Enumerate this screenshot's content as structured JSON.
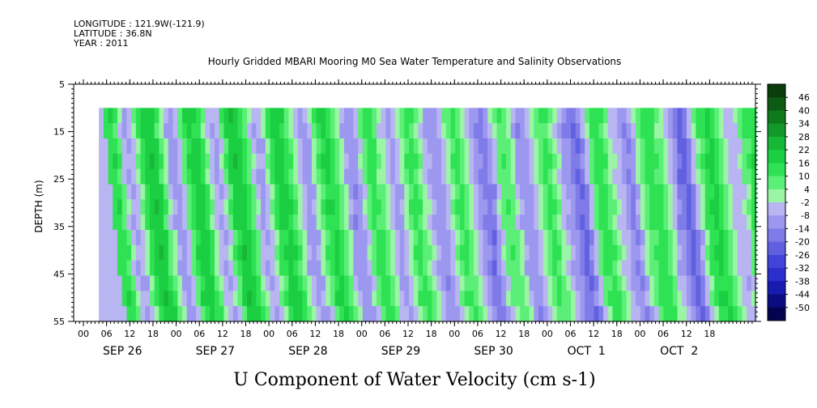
{
  "header": {
    "longitude": "LONGITUDE : 121.9W(-121.9)",
    "latitude": "LATITUDE : 36.8N",
    "year": "YEAR : 2011"
  },
  "chart_data": {
    "type": "heatmap",
    "title": "Hourly Gridded MBARI Mooring M0 Sea Water Temperature and Salinity Observations",
    "xlabel": "U Component of Water Velocity (cm s-1)",
    "ylabel": "DEPTH (m)",
    "ylim": [
      5,
      55
    ],
    "y_inverted": true,
    "y_ticks": [
      5,
      15,
      25,
      35,
      45,
      55
    ],
    "x_hour_ticks": [
      "00",
      "06",
      "12",
      "18",
      "00",
      "06",
      "12",
      "18",
      "00",
      "06",
      "12",
      "18",
      "00",
      "06",
      "12",
      "18",
      "00",
      "06",
      "12",
      "18",
      "00",
      "06",
      "12",
      "18",
      "00",
      "06",
      "12",
      "18"
    ],
    "x_day_labels": [
      "SEP 26",
      "SEP 27",
      "SEP 28",
      "SEP 29",
      "SEP 30",
      "OCT  1",
      "OCT  2"
    ],
    "data_start_hour": 4,
    "data_depth_range": [
      10,
      55
    ],
    "colorbar": {
      "levels": [
        46,
        40,
        34,
        28,
        22,
        16,
        10,
        4,
        -2,
        -8,
        -14,
        -20,
        -26,
        -32,
        -38,
        -44,
        -50
      ],
      "colors_high_to_low": [
        "#0a3d0a",
        "#0d5a14",
        "#0f7a1c",
        "#12992a",
        "#17b836",
        "#1ccf42",
        "#2ee253",
        "#5bef77",
        "#9af5a5",
        "#b8b5f2",
        "#9c98ef",
        "#7f7be8",
        "#6060e0",
        "#4044d8",
        "#2a2ecc",
        "#181bb0",
        "#0a0c80",
        "#020450"
      ]
    },
    "time_columns_u": [
      -6,
      12,
      15,
      8,
      -4,
      -10,
      -8,
      2,
      12,
      18,
      20,
      16,
      8,
      -2,
      -10,
      -12,
      -6,
      6,
      14,
      18,
      16,
      10,
      2,
      -6,
      -10,
      -4,
      8,
      16,
      20,
      18,
      12,
      4,
      -4,
      -10,
      -8,
      2,
      10,
      16,
      18,
      14,
      8,
      0,
      -8,
      -12,
      -10,
      -2,
      8,
      14,
      16,
      12,
      6,
      -2,
      -10,
      -14,
      -12,
      -4,
      6,
      12,
      10,
      4,
      -2,
      -8,
      -12,
      -8,
      0,
      8,
      12,
      8,
      2,
      -4,
      -10,
      -14,
      -12,
      -6,
      2,
      8,
      10,
      6,
      0,
      -6,
      -12,
      -16,
      -20,
      -14,
      -4,
      4,
      8,
      6,
      -2,
      -10,
      -14,
      -12,
      -6,
      0,
      6,
      10,
      8,
      2,
      -4,
      -10,
      -14,
      -18,
      -22,
      -16,
      -6,
      4,
      10,
      12,
      8,
      2,
      -4,
      -8,
      -12,
      -16,
      -10,
      -2,
      6,
      10,
      12,
      10,
      4,
      -2,
      -8,
      -14,
      -20,
      -24,
      -18,
      -8,
      2,
      10,
      14,
      16,
      12,
      6,
      0,
      -6,
      -8,
      -4,
      4,
      10,
      14,
      12
    ]
  }
}
